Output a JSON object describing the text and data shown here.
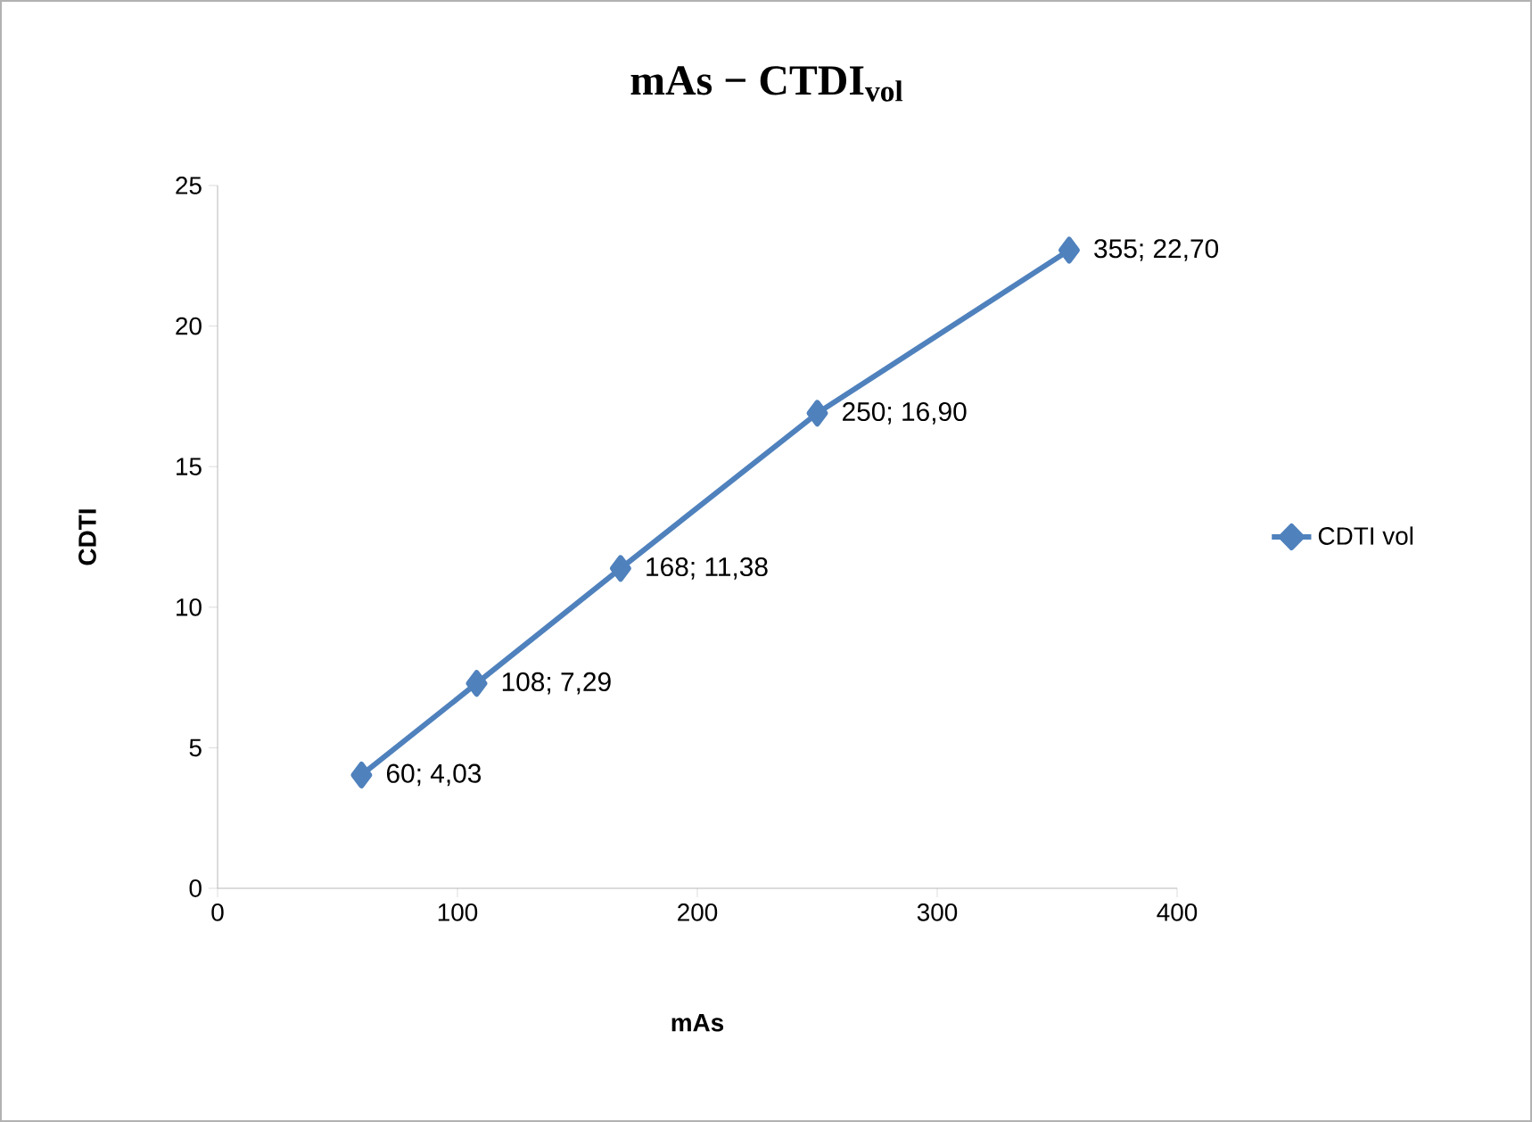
{
  "chart_data": {
    "type": "line",
    "title": "mAs − CTDI$_{vol}$",
    "xlabel": "mAs",
    "ylabel": "CDTI",
    "x": [
      60,
      108,
      168,
      250,
      355
    ],
    "series": [
      {
        "name": "CDTI vol",
        "color": "#4f81bd",
        "values": [
          4.03,
          7.29,
          11.38,
          16.9,
          22.7
        ],
        "value_labels": [
          "60; 4,03",
          "108; 7,29",
          "168; 11,38",
          "250; 16,90",
          "355; 22,70"
        ]
      }
    ],
    "xlim": [
      0,
      400
    ],
    "xticks": [
      0,
      100,
      200,
      300,
      400
    ],
    "ylim": [
      0,
      25
    ],
    "yticks": [
      0,
      5,
      10,
      15,
      20,
      25
    ],
    "marker": "diamond",
    "line_style": "solid",
    "legend": "right",
    "grid": false
  }
}
